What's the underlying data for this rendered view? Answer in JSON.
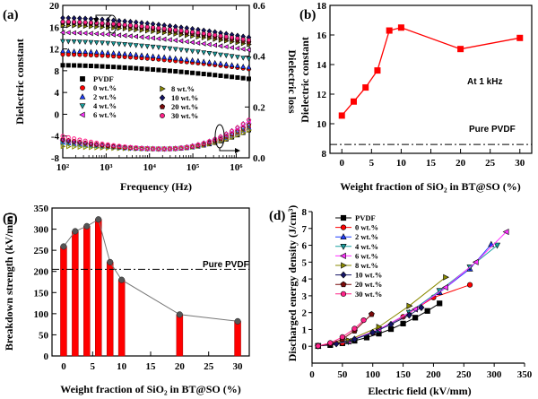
{
  "chart_data": [
    {
      "panel": "(a)",
      "type": "line",
      "xlabel": "Frequency (Hz)",
      "ylabel": "Dielectric constant",
      "y2label": "Dielectric loss",
      "xscale": "log",
      "xlim": [
        100,
        2000000
      ],
      "ylim": [
        -8,
        20
      ],
      "y2lim": [
        0,
        0.6
      ],
      "xticks": [
        "10²",
        "10³",
        "10⁴",
        "10⁵",
        "10⁶"
      ],
      "yticks": [
        "-8",
        "-4",
        "0",
        "4",
        "8",
        "12",
        "16",
        "20"
      ],
      "y2ticks": [
        "0.0",
        "0.2",
        "0.4",
        "0.6"
      ],
      "legend_left": [
        "PVDF",
        "0 wt.%",
        "2 wt.%",
        "4 wt.%",
        "6 wt.%"
      ],
      "legend_right": [
        "8 wt.%",
        "10 wt.%",
        "20 wt.%",
        "30 wt.%"
      ],
      "series": [
        {
          "name": "PVDF",
          "color": "#000000",
          "marker": "square",
          "eps": [
            9.0,
            6.5
          ],
          "loss": [
            0.065,
            0.11
          ]
        },
        {
          "name": "0 wt.%",
          "color": "#ff0000",
          "marker": "circle",
          "eps": [
            11.0,
            8.3
          ],
          "loss": [
            0.063,
            0.12
          ]
        },
        {
          "name": "2 wt.%",
          "color": "#1f3fff",
          "marker": "triangle-up",
          "eps": [
            11.6,
            8.6
          ],
          "loss": [
            0.06,
            0.12
          ]
        },
        {
          "name": "4 wt.%",
          "color": "#1aa0a0",
          "marker": "triangle-down",
          "eps": [
            13.4,
            10.2
          ],
          "loss": [
            0.058,
            0.13
          ]
        },
        {
          "name": "6 wt.%",
          "color": "#ff33ff",
          "marker": "triangle-left",
          "eps": [
            15.0,
            11.8
          ],
          "loss": [
            0.07,
            0.14
          ]
        },
        {
          "name": "8 wt.%",
          "color": "#8a8a00",
          "marker": "triangle-right",
          "eps": [
            16.3,
            12.8
          ],
          "loss": [
            0.045,
            0.11
          ]
        },
        {
          "name": "10 wt.%",
          "color": "#141466",
          "marker": "diamond",
          "eps": [
            17.7,
            14.1
          ],
          "loss": [
            0.07,
            0.15
          ]
        },
        {
          "name": "20 wt.%",
          "color": "#7a0a0a",
          "marker": "pentagon",
          "eps": [
            16.8,
            13.2
          ],
          "loss": [
            0.072,
            0.13
          ]
        },
        {
          "name": "30 wt.%",
          "color": "#ff2288",
          "marker": "circle",
          "eps": [
            17.0,
            13.6
          ],
          "loss": [
            0.085,
            0.15
          ]
        }
      ]
    },
    {
      "panel": "(b)",
      "type": "line",
      "xlabel": "Weight fraction of SiO₂ in BT@SO (%)",
      "ylabel": "Dielectric constant",
      "xlim": [
        -2,
        32
      ],
      "ylim": [
        8,
        18
      ],
      "xticks": [
        "0",
        "5",
        "10",
        "15",
        "20",
        "25",
        "30"
      ],
      "yticks": [
        "8",
        "10",
        "12",
        "14",
        "16",
        "18"
      ],
      "x": [
        0,
        2,
        4,
        6,
        8,
        10,
        20,
        30
      ],
      "values": [
        10.55,
        11.5,
        12.45,
        13.6,
        16.3,
        16.5,
        15.05,
        15.8
      ],
      "color": "#ff0000",
      "annotation": "At 1 kHz",
      "reference_label": "Pure PVDF",
      "reference_value": 8.6
    },
    {
      "panel": "(c)",
      "type": "bar",
      "xlabel": "Weight fraction of SiO₂ in BT@SO (%)",
      "ylabel": "Breakdown strength (kV/mm)",
      "xlim": [
        -2,
        32
      ],
      "ylim": [
        0,
        350
      ],
      "xticks": [
        "0",
        "5",
        "10",
        "15",
        "20",
        "25",
        "30"
      ],
      "yticks": [
        "0",
        "50",
        "100",
        "150",
        "200",
        "250",
        "300",
        "350"
      ],
      "x": [
        0,
        2,
        4,
        6,
        8,
        10,
        20,
        30
      ],
      "values": [
        259,
        295,
        307,
        323,
        222,
        180,
        98,
        82
      ],
      "color": "#ff0000",
      "reference_label": "Pure PVDF",
      "reference_value": 205
    },
    {
      "panel": "(d)",
      "type": "scatter",
      "xlabel": "Electric field (kV/mm)",
      "ylabel": "Discharged energy density (J/cm³)",
      "xlim": [
        0,
        350
      ],
      "ylim": [
        -1,
        8
      ],
      "xticks": [
        "0",
        "50",
        "100",
        "150",
        "200",
        "250",
        "300",
        "350"
      ],
      "yticks": [
        "0",
        "1",
        "2",
        "3",
        "4",
        "5",
        "6",
        "7",
        "8"
      ],
      "series": [
        {
          "name": "PVDF",
          "color": "#000000",
          "marker": "square",
          "x": [
            10,
            30,
            50,
            70,
            90,
            110,
            130,
            150,
            170,
            190,
            210
          ],
          "y": [
            0.02,
            0.07,
            0.18,
            0.33,
            0.52,
            0.75,
            1.02,
            1.35,
            1.7,
            2.1,
            2.55
          ]
        },
        {
          "name": "0 wt.%",
          "color": "#ff0000",
          "marker": "circle",
          "x": [
            10,
            50,
            100,
            150,
            200,
            260
          ],
          "y": [
            0.02,
            0.2,
            0.8,
            1.75,
            2.9,
            3.65
          ]
        },
        {
          "name": "2 wt.%",
          "color": "#1f3fff",
          "marker": "triangle-up",
          "x": [
            10,
            60,
            110,
            160,
            210,
            260,
            295
          ],
          "y": [
            0.02,
            0.28,
            0.95,
            2.0,
            3.2,
            4.6,
            6.05
          ]
        },
        {
          "name": "4 wt.%",
          "color": "#1aa0a0",
          "marker": "triangle-down",
          "x": [
            10,
            60,
            110,
            160,
            210,
            260,
            305
          ],
          "y": [
            0.02,
            0.28,
            0.95,
            2.0,
            3.3,
            4.7,
            6.0
          ]
        },
        {
          "name": "6 wt.%",
          "color": "#ff33ff",
          "marker": "triangle-left",
          "x": [
            10,
            60,
            110,
            170,
            220,
            270,
            320
          ],
          "y": [
            0.02,
            0.3,
            1.0,
            2.2,
            3.5,
            5.0,
            6.8
          ]
        },
        {
          "name": "8 wt.%",
          "color": "#8a8a00",
          "marker": "triangle-right",
          "x": [
            10,
            60,
            110,
            160,
            220
          ],
          "y": [
            0.02,
            0.35,
            1.15,
            2.4,
            4.1
          ]
        },
        {
          "name": "10 wt.%",
          "color": "#141466",
          "marker": "diamond",
          "x": [
            10,
            40,
            70,
            100,
            130,
            160,
            180
          ],
          "y": [
            0.02,
            0.15,
            0.42,
            0.82,
            1.3,
            1.85,
            2.3
          ]
        },
        {
          "name": "20 wt.%",
          "color": "#7a0a0a",
          "marker": "pentagon",
          "x": [
            10,
            30,
            50,
            70,
            98
          ],
          "y": [
            0.02,
            0.15,
            0.42,
            0.92,
            1.9
          ]
        },
        {
          "name": "30 wt.%",
          "color": "#ff2288",
          "marker": "circle",
          "x": [
            10,
            30,
            50,
            70,
            85
          ],
          "y": [
            0.02,
            0.2,
            0.55,
            1.05,
            1.55
          ]
        }
      ]
    }
  ]
}
